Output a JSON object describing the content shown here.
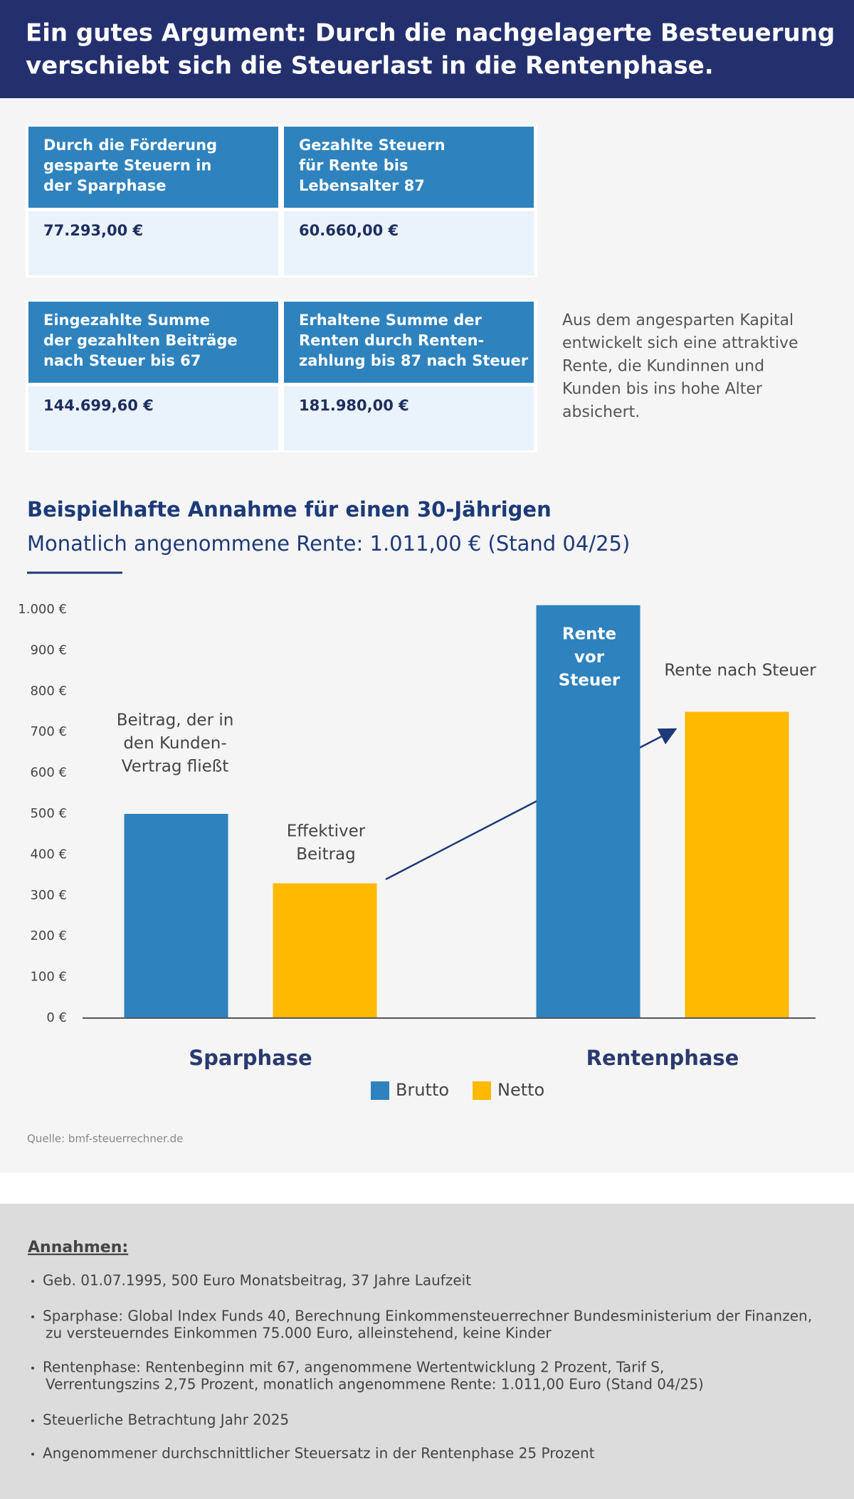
{
  "header": {
    "title": [
      "Ein gutes Argument: Durch die nachgelagerte Besteuerung",
      "verschiebt sich die Steuerlast in die Rentenphase."
    ]
  },
  "tables": [
    [
      {
        "label": [
          "Durch die Förderung",
          "gesparte Steuern in",
          "der Sparphase"
        ],
        "value": "77.293,00 €"
      },
      {
        "label": [
          "Gezahlte Steuern",
          "für Rente bis",
          "Lebensalter 87"
        ],
        "value": "60.660,00 €"
      }
    ],
    [
      {
        "label": [
          "Eingezahlte Summe",
          "der gezahlten Beiträge",
          "nach Steuer bis 67"
        ],
        "value": "144.699,60 €"
      },
      {
        "label": [
          "Erhaltene Summe der",
          "Renten durch Renten-",
          "zahlung bis 87 nach Steuer"
        ],
        "value": "181.980,00 €"
      }
    ]
  ],
  "side_text": [
    "Aus dem angesparten Kapital",
    "entwickelt sich eine attraktive",
    "Rente, die Kundinnen und",
    "Kunden bis ins hohe Alter",
    "absichert."
  ],
  "chart_data": {
    "type": "bar",
    "title": "Beispielhafte Annahme für einen 30-Jährigen",
    "subtitle": "Monatlich angenommene Rente: 1.011,00 € (Stand 04/25)",
    "categories": [
      "Sparphase",
      "Rentenphase"
    ],
    "series": [
      {
        "name": "Brutto",
        "color": "#2e82bd",
        "values": [
          500,
          1011
        ]
      },
      {
        "name": "Netto",
        "color": "#ffb900",
        "values": [
          330,
          750
        ]
      }
    ],
    "ylim": [
      0,
      1000
    ],
    "yticks": [
      {
        "value": 0,
        "label": "0 €"
      },
      {
        "value": 100,
        "label": "100 €"
      },
      {
        "value": 200,
        "label": "200 €"
      },
      {
        "value": 300,
        "label": "300 €"
      },
      {
        "value": 400,
        "label": "400 €"
      },
      {
        "value": 500,
        "label": "500 €"
      },
      {
        "value": 600,
        "label": "600 €"
      },
      {
        "value": 700,
        "label": "700 €"
      },
      {
        "value": 800,
        "label": "800 €"
      },
      {
        "value": 900,
        "label": "900 €"
      },
      {
        "value": 1000,
        "label": "1.000 €"
      }
    ],
    "annotations": [
      [
        "Beitrag, der in",
        "den Kunden-",
        "Vertrag fließt"
      ],
      [
        "Effektiver",
        "Beitrag"
      ],
      [
        "Rente",
        "vor",
        "Steuer"
      ],
      [
        "Rente nach Steuer"
      ]
    ],
    "legend": "bottom",
    "source": "Quelle: bmf-steuerrechner.de"
  },
  "assumptions": {
    "title": "Annahmen:",
    "items": [
      [
        "Geb. 01.07.1995, 500 Euro Monatsbeitrag, 37 Jahre Laufzeit"
      ],
      [
        "Sparphase: Global Index Funds 40, Berechnung Einkommensteuerrechner Bundesministerium der Finanzen,",
        "zu versteuerndes Einkommen 75.000 Euro, alleinstehend, keine Kinder"
      ],
      [
        "Rentenphase: Rentenbeginn mit 67, angenommene Wertentwicklung 2 Prozent, Tarif S,",
        "Verrentungszins 2,75 Prozent, monatlich angenommene Rente: 1.011,00 Euro (Stand 04/25)"
      ],
      [
        "Steuerliche Betrachtung Jahr 2025"
      ],
      [
        "Angenommener durchschnittlicher Steuersatz in der Rentenphase 25 Prozent"
      ]
    ]
  }
}
